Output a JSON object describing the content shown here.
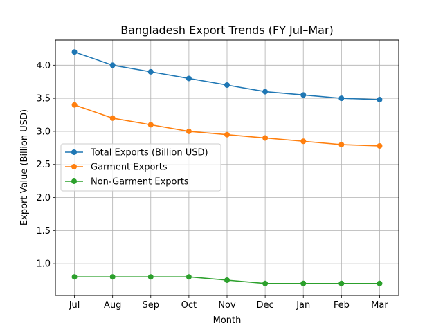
{
  "chart_data": {
    "type": "line",
    "title": "Bangladesh Export Trends (FY Jul–Mar)",
    "xlabel": "Month",
    "ylabel": "Export Value (Billion USD)",
    "categories": [
      "Jul",
      "Aug",
      "Sep",
      "Oct",
      "Nov",
      "Dec",
      "Jan",
      "Feb",
      "Mar"
    ],
    "ylim": [
      0.52,
      4.38
    ],
    "yticks": [
      1.0,
      1.5,
      2.0,
      2.5,
      3.0,
      3.5,
      4.0
    ],
    "ytick_labels": [
      "1.0",
      "1.5",
      "2.0",
      "2.5",
      "3.0",
      "3.5",
      "4.0"
    ],
    "grid": true,
    "legend_position": "center-left",
    "series": [
      {
        "name": "Total Exports (Billion USD)",
        "color": "#1f77b4",
        "marker": "circle",
        "values": [
          4.2,
          4.0,
          3.9,
          3.8,
          3.7,
          3.6,
          3.55,
          3.5,
          3.48
        ]
      },
      {
        "name": "Garment Exports",
        "color": "#ff7f0e",
        "marker": "circle",
        "values": [
          3.4,
          3.2,
          3.1,
          3.0,
          2.95,
          2.9,
          2.85,
          2.8,
          2.78
        ]
      },
      {
        "name": "Non-Garment Exports",
        "color": "#2ca02c",
        "marker": "circle",
        "values": [
          0.8,
          0.8,
          0.8,
          0.8,
          0.75,
          0.7,
          0.7,
          0.7,
          0.7
        ]
      }
    ]
  }
}
